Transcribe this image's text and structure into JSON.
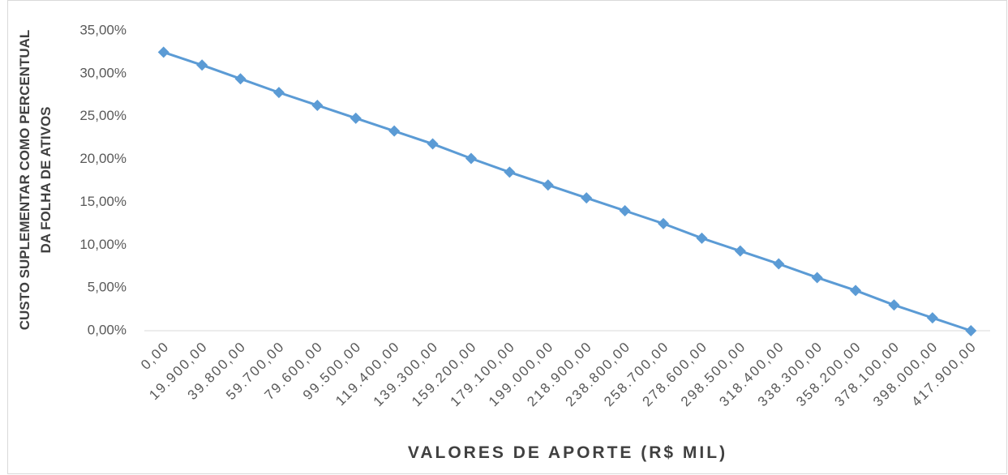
{
  "chart_data": {
    "type": "line",
    "categories": [
      "0,00",
      "19.900,00",
      "39.800,00",
      "59.700,00",
      "79.600,00",
      "99.500,00",
      "119.400,00",
      "139.300,00",
      "159.200,00",
      "179.100,00",
      "199.000,00",
      "218.900,00",
      "238.800,00",
      "258.700,00",
      "278.600,00",
      "298.500,00",
      "318.400,00",
      "338.300,00",
      "358.200,00",
      "378.100,00",
      "398.000,00",
      "417.900,00"
    ],
    "values": [
      32.5,
      31.0,
      29.4,
      27.8,
      26.3,
      24.8,
      23.3,
      21.8,
      20.1,
      18.5,
      17.0,
      15.5,
      14.0,
      12.5,
      10.8,
      9.3,
      7.8,
      6.2,
      4.7,
      3.0,
      1.5,
      0
    ],
    "color": "#5b9bd5",
    "ylim": [
      0,
      35
    ],
    "yticks": [
      {
        "value": 0,
        "label": "0,00%"
      },
      {
        "value": 5,
        "label": "5,00%"
      },
      {
        "value": 10,
        "label": "10,00%"
      },
      {
        "value": 15,
        "label": "15,00%"
      },
      {
        "value": 20,
        "label": "20,00%"
      },
      {
        "value": 25,
        "label": "25,00%"
      },
      {
        "value": 30,
        "label": "30,00%"
      },
      {
        "value": 35,
        "label": "35,00%"
      }
    ],
    "x_label": "VALORES DE APORTE (R$ MIL)",
    "y_label": [
      "CUSTO SUPLEMENTAR COMO PERCENTUAL",
      "DA FOLHA DE ATIVOS"
    ],
    "grid": false
  }
}
